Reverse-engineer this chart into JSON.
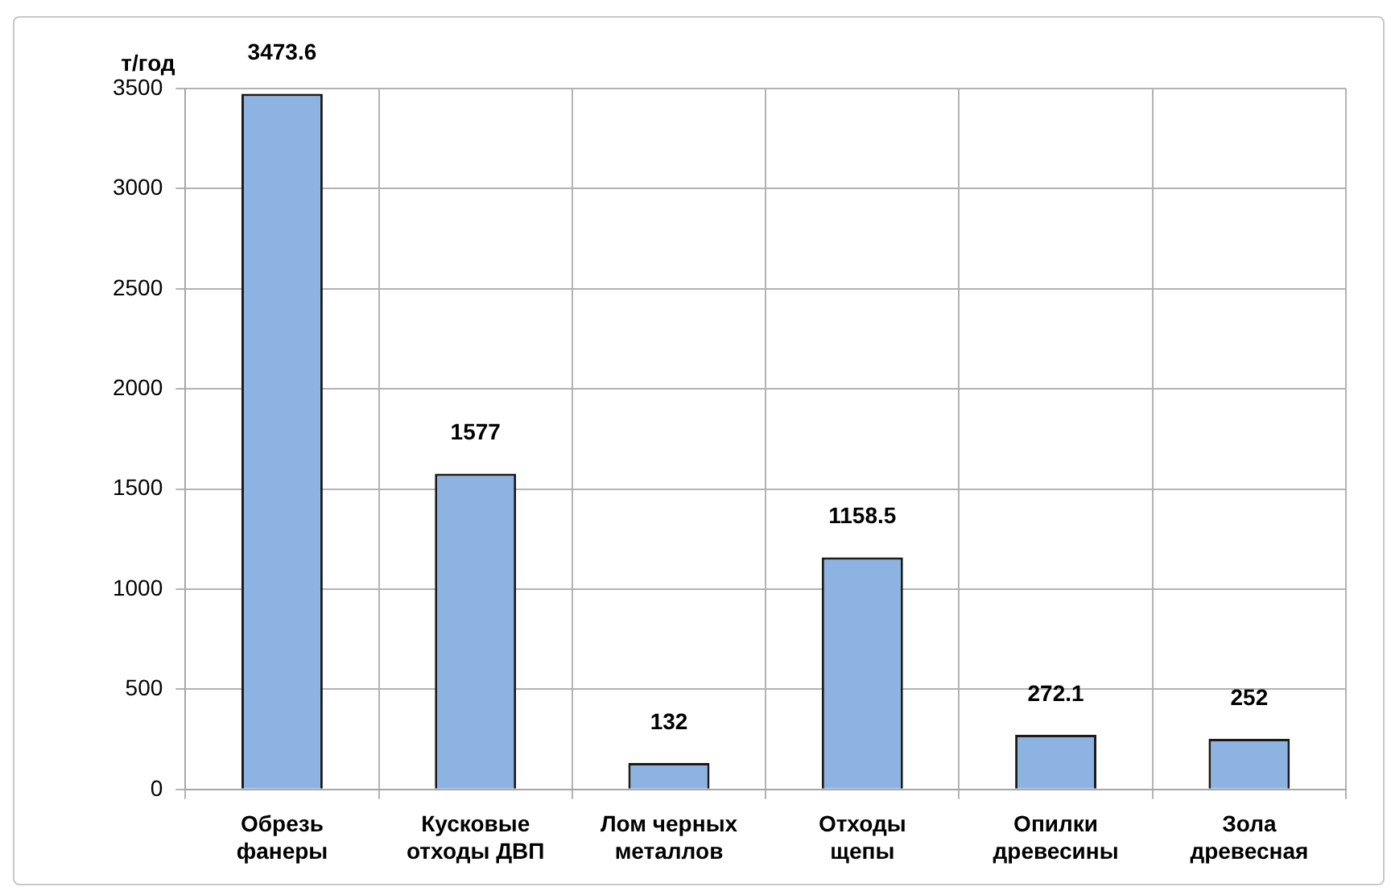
{
  "chart_data": {
    "type": "bar",
    "ylabel": "т/год",
    "categories": [
      "Обрезь\nфанеры",
      "Кусковые\nотходы ДВП",
      "Лом черных\nметаллов",
      "Отходы\nщепы",
      "Опилки\nдревесины",
      "Зола\nдревесная"
    ],
    "values": [
      3473.6,
      1577,
      132,
      1158.5,
      272.1,
      252
    ],
    "color": "#8db3e2",
    "ylim": [
      0,
      3500
    ],
    "yticks": [
      0,
      500,
      1000,
      1500,
      2000,
      2500,
      3000,
      3500
    ],
    "grid": true,
    "data_labels": true
  }
}
